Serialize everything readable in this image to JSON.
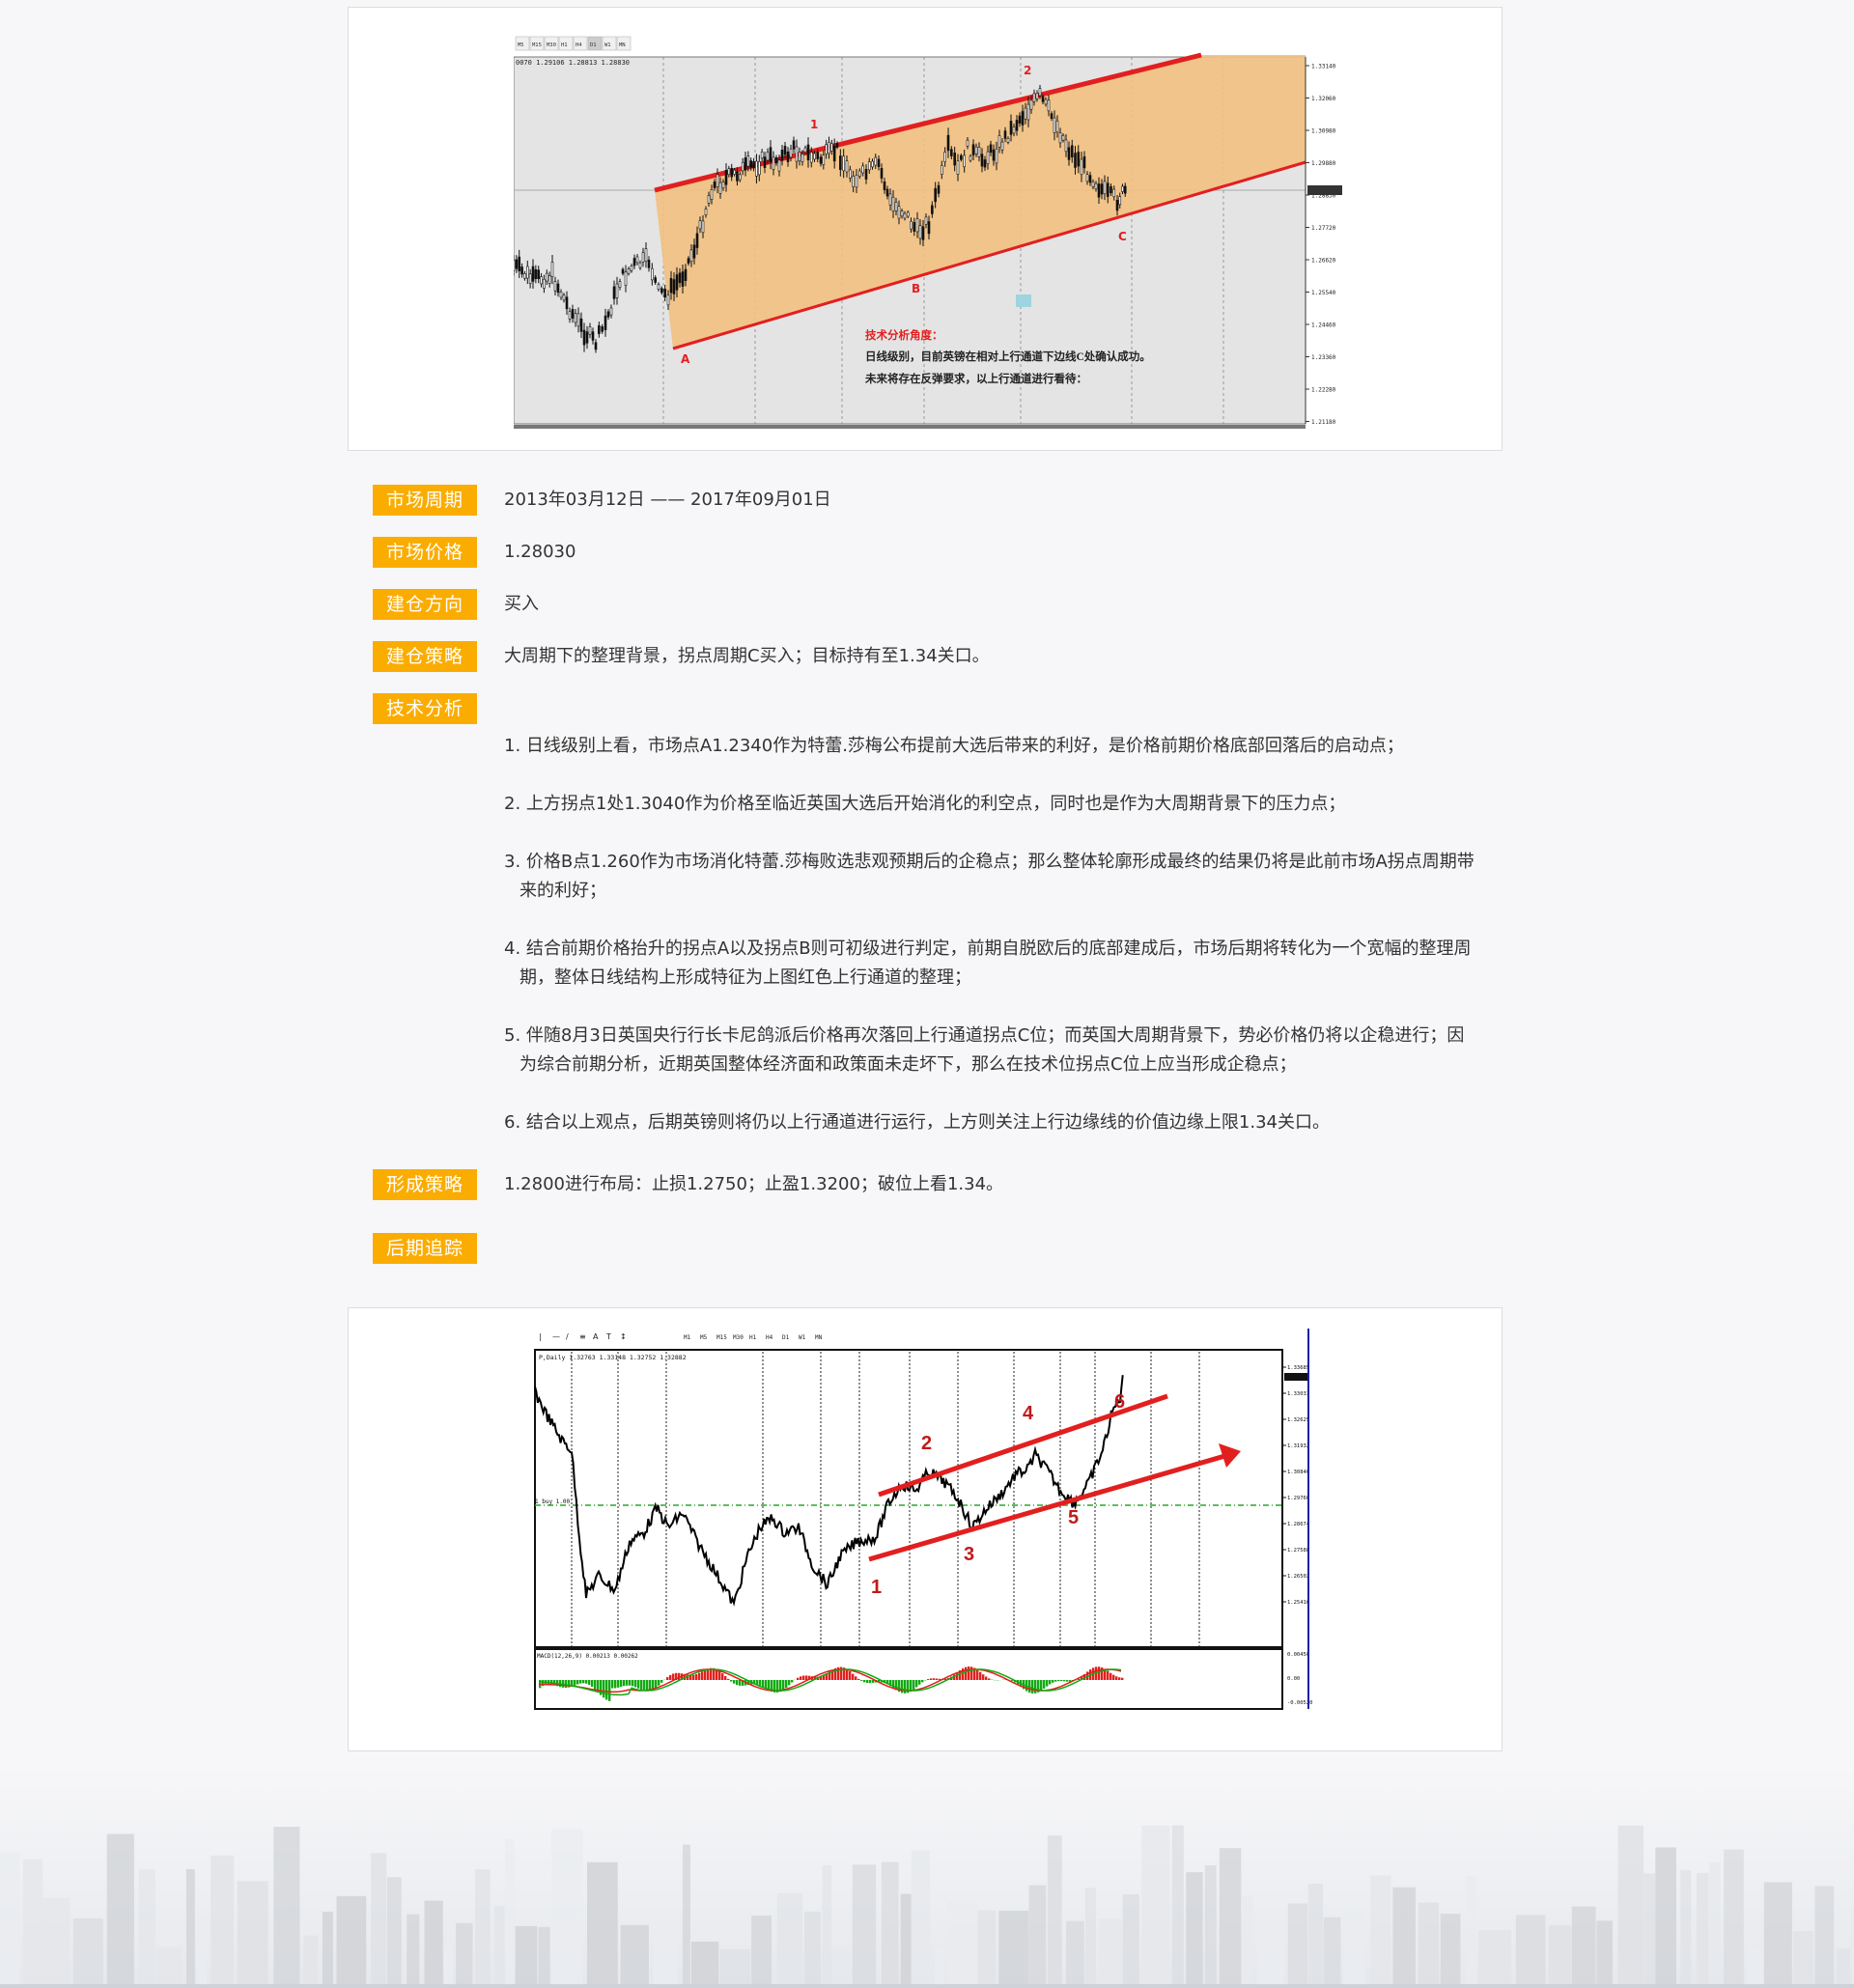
{
  "chart1": {
    "tabs": [
      "M5",
      "M15",
      "M30",
      "H1",
      "H4",
      "D1",
      "W1",
      "MN"
    ],
    "ohlc_header": "0070 1.29106 1.28813 1.28830",
    "price_axis": [
      "1.33140",
      "1.32060",
      "1.30980",
      "1.29880",
      "1.28830",
      "1.27720",
      "1.26620",
      "1.25540",
      "1.24460",
      "1.23360",
      "1.22280",
      "1.21180"
    ],
    "point_labels": {
      "A": "A",
      "B": "B",
      "C": "C",
      "p1": "1",
      "p2": "2"
    },
    "annotation_title": "技术分析角度：",
    "annotation_line1": "日线级别，目前英镑在相对上行通道下边线C处确认成功。",
    "annotation_line2": "未来将存在反弹要求，以上行通道进行看待：",
    "colors": {
      "channel_fill": "#f1c080",
      "channel_line": "#e21f1f",
      "bg": "#e4e4e4"
    }
  },
  "info": {
    "period_label": "市场周期",
    "period_value": "2013年03月12日 —— 2017年09月01日",
    "price_label": "市场价格",
    "price_value": "1.28030",
    "direction_label": "建仓方向",
    "direction_value": "买入",
    "strategy_label": "建仓策略",
    "strategy_value": "大周期下的整理背景，拐点周期C买入；目标持有至1.34关口。",
    "analysis_label": "技术分析",
    "analysis_items": [
      "1. 日线级别上看，市场点A1.2340作为特蕾.莎梅公布提前大选后带来的利好，是价格前期价格底部回落后的启动点；",
      "2. 上方拐点1处1.3040作为价格至临近英国大选后开始消化的利空点，同时也是作为大周期背景下的压力点；",
      "3. 价格B点1.260作为市场消化特蕾.莎梅败选悲观预期后的企稳点；那么整体轮廓形成最终的结果仍将是此前市场A拐点周期带来的利好；",
      "4. 结合前期价格抬升的拐点A以及拐点B则可初级进行判定，前期自脱欧后的底部建成后，市场后期将转化为一个宽幅的整理周期，整体日线结构上形成特征为上图红色上行通道的整理；",
      "5. 伴随8月3日英国央行行长卡尼鸽派后价格再次落回上行通道拐点C位；而英国大周期背景下，势必价格仍将以企稳进行；因为综合前期分析，近期英国整体经济面和政策面未走坏下，那么在技术位拐点C位上应当形成企稳点；",
      "6. 结合以上观点，后期英镑则将仍以上行通道进行运行，上方则关注上行边缘线的价值边缘上限1.34关口。"
    ],
    "formed_label": "形成策略",
    "formed_value": "1.2800进行布局：止损1.2750；止盈1.3200；破位上看1.34。",
    "tracking_label": "后期追踪"
  },
  "chart2": {
    "toolbar_periods": [
      "M1",
      "M5",
      "M15",
      "M30",
      "H1",
      "H4",
      "D1",
      "W1",
      "MN"
    ],
    "ohlc_header": "P,Daily 1.32763 1.33148 1.32752 1.32882",
    "price_axis": [
      "1.33685",
      "1.33033",
      "1.32625",
      "1.31932",
      "1.30846",
      "1.29760",
      "1.28674",
      "1.27588",
      "1.26502",
      "1.25416"
    ],
    "buy_label": "1 buy 1.00",
    "macd_header": "MACD(12,26,9) 0.00213 0.00262",
    "macd_axis": [
      "0.00450",
      "0.00",
      "-0.00520"
    ],
    "wave_labels": [
      "1",
      "2",
      "3",
      "4",
      "5",
      "6"
    ],
    "colors": {
      "wave": "#e21f1f",
      "price": "#000000",
      "macd_up": "#e21f1f",
      "macd_down": "#11aa11"
    }
  }
}
